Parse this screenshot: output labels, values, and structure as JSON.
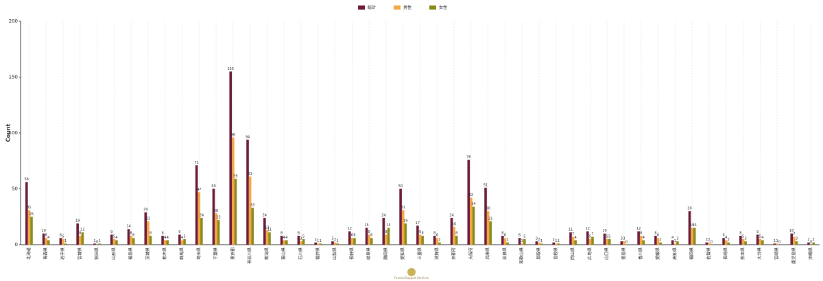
{
  "chart_data": {
    "type": "bar",
    "y_label": "Count",
    "footer": "Funeral Support Services",
    "categories": [
      "北海道",
      "青森県",
      "岩手県",
      "宮城県",
      "秋田県",
      "山形県",
      "福島県",
      "茨城県",
      "栃木県",
      "群馬県",
      "埼玉県",
      "千葉県",
      "東京都",
      "神奈川県",
      "新潟県",
      "富山県",
      "石川県",
      "福井県",
      "山梨県",
      "長野県",
      "岐阜県",
      "静岡県",
      "愛知県",
      "三重県",
      "滋賀県",
      "京都府",
      "大阪府",
      "兵庫県",
      "奈良県",
      "和歌山県",
      "鳥取県",
      "島根県",
      "岡山県",
      "広島県",
      "山口県",
      "徳島県",
      "香川県",
      "愛媛県",
      "高知県",
      "福岡県",
      "佐賀県",
      "長崎県",
      "熊本県",
      "大分県",
      "宮崎県",
      "鹿児島県",
      "沖縄県"
    ],
    "series": [
      {
        "name": "総計",
        "color": "#6b1a3a",
        "values": [
          56,
          10,
          6,
          19,
          1,
          9,
          14,
          29,
          8,
          9,
          71,
          50,
          155,
          94,
          24,
          8,
          8,
          2,
          3,
          12,
          15,
          24,
          50,
          17,
          8,
          24,
          76,
          51,
          8,
          6,
          3,
          2,
          11,
          12,
          10,
          3,
          12,
          8,
          4,
          30,
          2,
          6,
          8,
          9,
          1,
          10,
          2
        ]
      },
      {
        "name": "男性",
        "color": "#f5a742",
        "values": [
          31,
          6,
          5,
          8,
          0,
          5,
          8,
          21,
          4,
          4,
          47,
          28,
          96,
          61,
          13,
          4,
          3,
          1,
          2,
          6,
          9,
          9,
          31,
          9,
          6,
          16,
          42,
          30,
          6,
          1,
          2,
          1,
          7,
          5,
          5,
          3,
          8,
          6,
          1,
          15,
          2,
          4,
          5,
          5,
          1,
          7,
          0
        ]
      },
      {
        "name": "女性",
        "color": "#8a8a1a",
        "values": [
          25,
          4,
          1,
          11,
          1,
          4,
          6,
          8,
          4,
          5,
          24,
          22,
          59,
          33,
          11,
          4,
          5,
          1,
          1,
          6,
          6,
          15,
          19,
          8,
          2,
          8,
          34,
          21,
          2,
          5,
          1,
          1,
          4,
          7,
          5,
          0,
          4,
          2,
          3,
          15,
          0,
          2,
          3,
          4,
          0,
          3,
          2
        ]
      }
    ],
    "ylim": [
      0,
      200
    ],
    "yticks": [
      0,
      50,
      100,
      150,
      200
    ],
    "grid": true,
    "legend": "top"
  }
}
